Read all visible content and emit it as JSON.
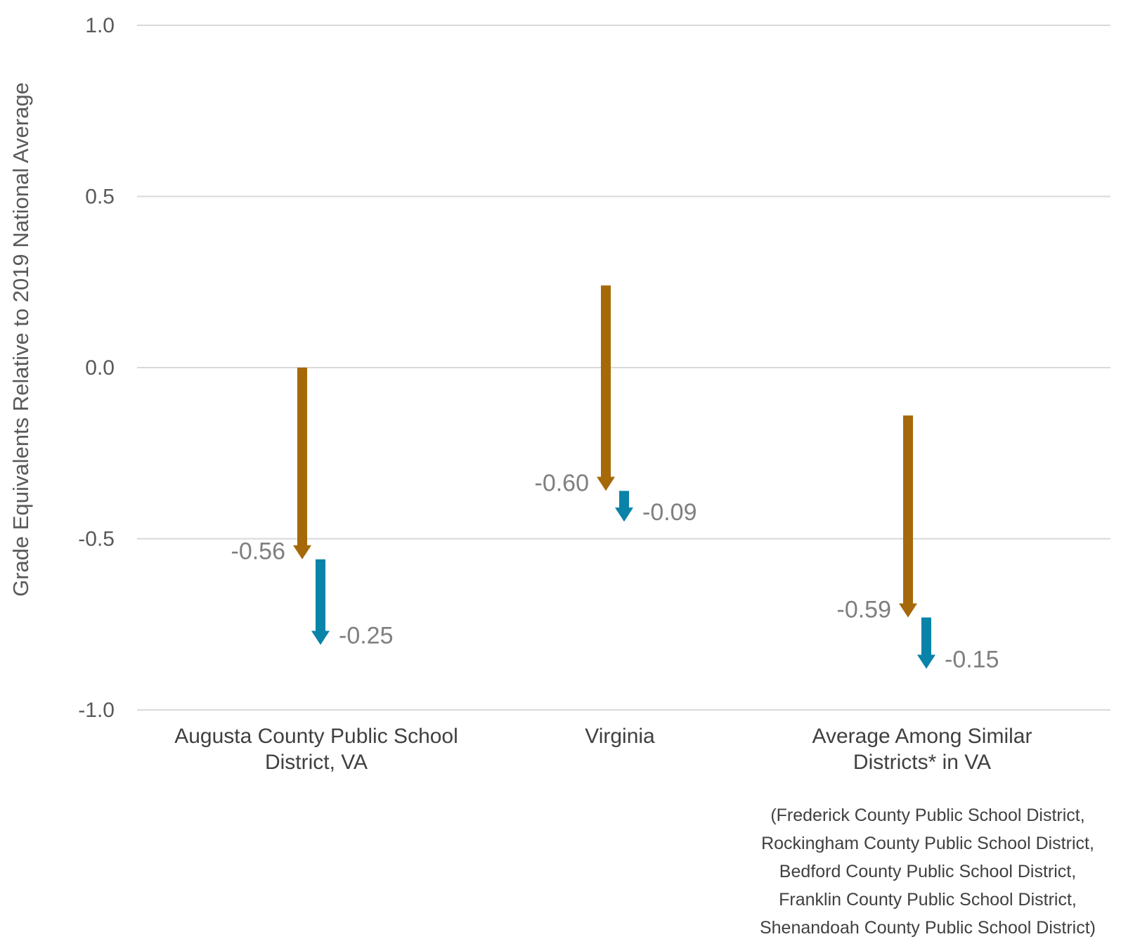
{
  "chart_data": {
    "type": "arrow",
    "ylabel": "Grade Equivalents Relative to 2019 National Average",
    "ylim": [
      -1.0,
      1.0
    ],
    "yticks": [
      1.0,
      0.5,
      0.0,
      -0.5,
      -1.0
    ],
    "ytick_labels": [
      "1.0",
      "0.5",
      "0.0",
      "-0.5",
      "-1.0"
    ],
    "grid": true,
    "categories": [
      {
        "lines": [
          "Augusta County Public School",
          "District, VA"
        ]
      },
      {
        "lines": [
          "Virginia"
        ]
      },
      {
        "lines": [
          "Average Among Similar",
          "Districts* in VA"
        ]
      }
    ],
    "series": [
      {
        "color": "#a5690a",
        "segments": [
          {
            "from": 0.0,
            "to": -0.56,
            "label": "-0.56"
          },
          {
            "from": 0.24,
            "to": -0.36,
            "label": "-0.60"
          },
          {
            "from": -0.14,
            "to": -0.73,
            "label": "-0.59"
          }
        ]
      },
      {
        "color": "#0a83a8",
        "segments": [
          {
            "from": -0.56,
            "to": -0.81,
            "label": "-0.25"
          },
          {
            "from": -0.36,
            "to": -0.45,
            "label": "-0.09"
          },
          {
            "from": -0.73,
            "to": -0.88,
            "label": "-0.15"
          }
        ]
      }
    ],
    "footnote": [
      "(Frederick County Public School District,",
      "Rockingham County Public School District,",
      "Bedford County Public School District,",
      "Franklin County Public School District,",
      "Shenandoah County Public School District)"
    ]
  }
}
